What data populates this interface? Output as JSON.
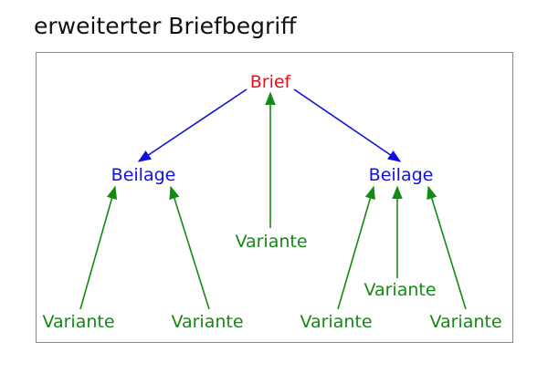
{
  "title": "erweiterter Briefbegriff",
  "colors": {
    "root": "#e8101a",
    "beilage": "#1010e0",
    "variante": "#138a13",
    "frame": "#888888"
  },
  "nodes": {
    "root": "Brief",
    "beilage_left": "Beilage",
    "beilage_right": "Beilage",
    "variante_center": "Variante",
    "variante_ll": "Variante",
    "variante_lr": "Variante",
    "variante_rl": "Variante",
    "variante_rm": "Variante",
    "variante_rr": "Variante"
  }
}
